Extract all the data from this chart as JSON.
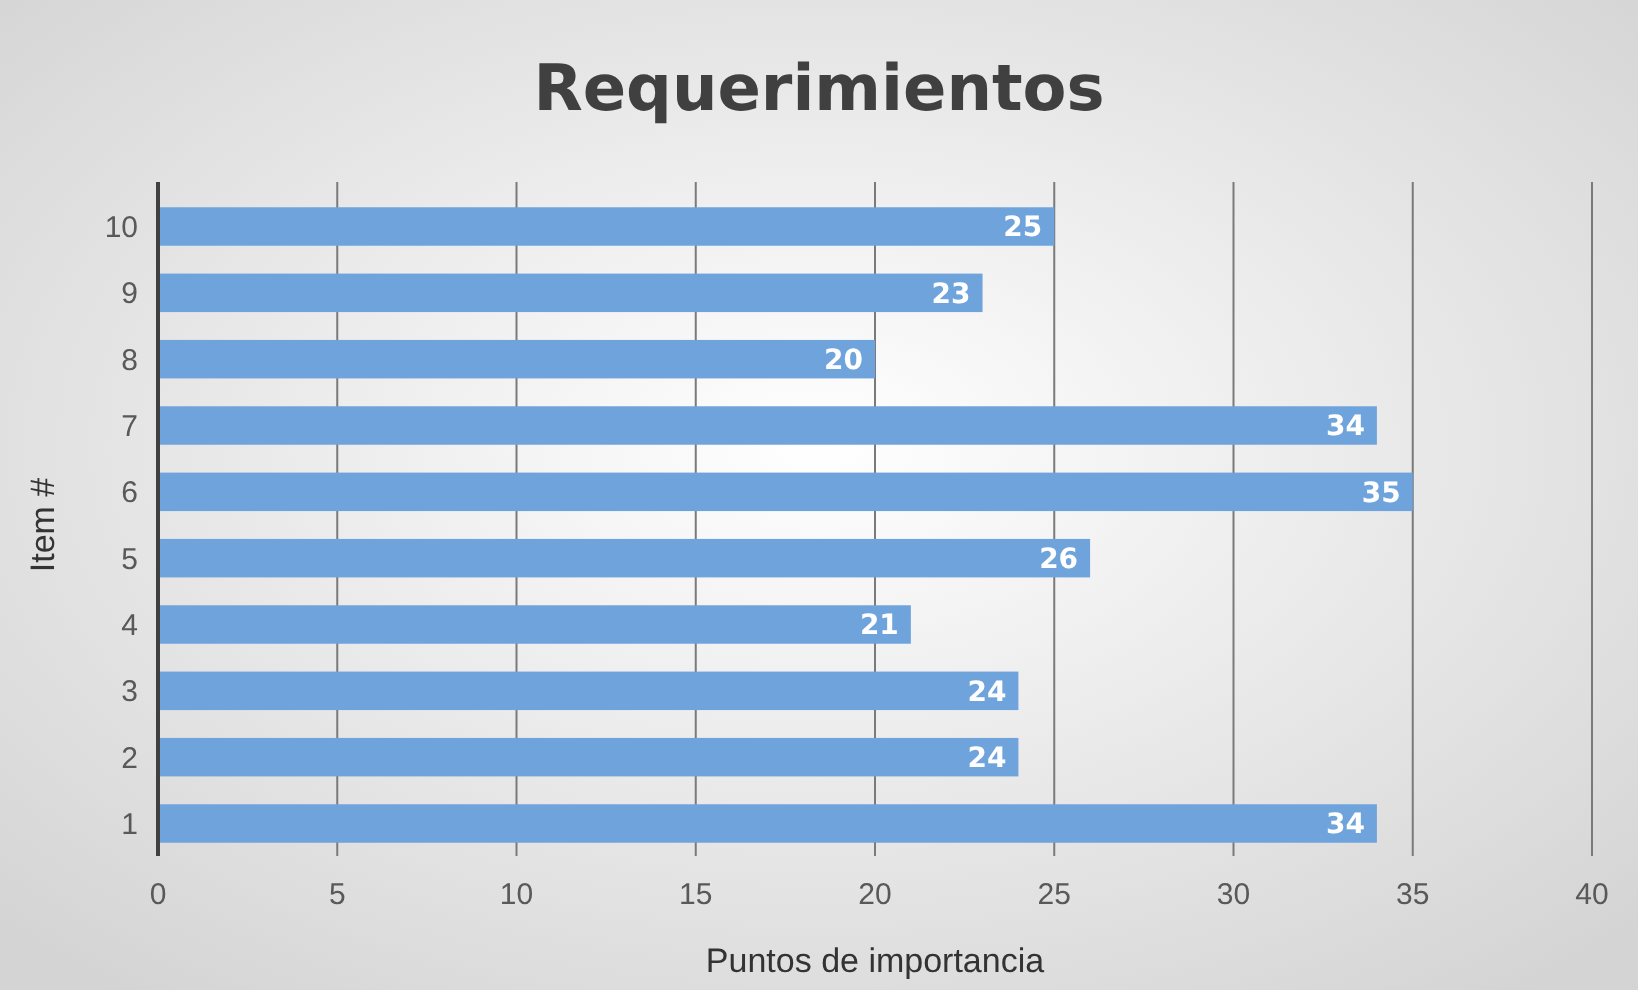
{
  "chart_data": {
    "type": "bar",
    "orientation": "horizontal",
    "title": "Requerimientos",
    "xlabel": "Puntos de importancia",
    "ylabel": "Item #",
    "categories": [
      "10",
      "9",
      "8",
      "7",
      "6",
      "5",
      "4",
      "3",
      "2",
      "1"
    ],
    "values": [
      25,
      23,
      20,
      34,
      35,
      26,
      21,
      24,
      24,
      34
    ],
    "color": "#6fa3dc",
    "data_labels": true,
    "grid": "x",
    "xlim": [
      0,
      40
    ],
    "xticks": [
      0,
      5,
      10,
      15,
      20,
      25,
      30,
      35,
      40
    ]
  }
}
